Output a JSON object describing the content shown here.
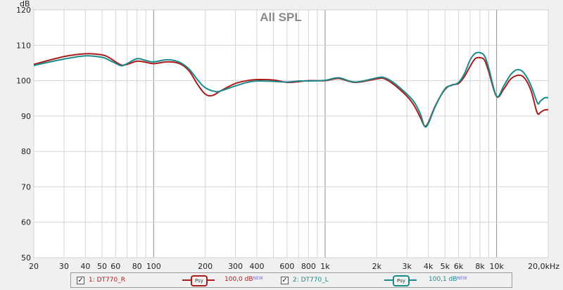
{
  "chart_data": {
    "type": "line",
    "title": "All SPL",
    "ylabel": "dB",
    "xscale": "log",
    "xlim": [
      20,
      20000
    ],
    "ylim": [
      50,
      120
    ],
    "grid": true,
    "yticks": [
      50,
      60,
      70,
      80,
      90,
      100,
      110,
      120
    ],
    "xticks": [
      {
        "v": 20,
        "l": "20"
      },
      {
        "v": 30,
        "l": "30"
      },
      {
        "v": 40,
        "l": "40"
      },
      {
        "v": 50,
        "l": "50"
      },
      {
        "v": 60,
        "l": "60"
      },
      {
        "v": 80,
        "l": "80"
      },
      {
        "v": 100,
        "l": "100"
      },
      {
        "v": 200,
        "l": "200"
      },
      {
        "v": 300,
        "l": "300"
      },
      {
        "v": 400,
        "l": "400"
      },
      {
        "v": 600,
        "l": "600"
      },
      {
        "v": 800,
        "l": "800"
      },
      {
        "v": 1000,
        "l": "1k"
      },
      {
        "v": 2000,
        "l": "2k"
      },
      {
        "v": 3000,
        "l": "3k"
      },
      {
        "v": 4000,
        "l": "4k"
      },
      {
        "v": 5000,
        "l": "5k"
      },
      {
        "v": 6000,
        "l": "6k"
      },
      {
        "v": 8000,
        "l": "8k"
      },
      {
        "v": 10000,
        "l": "10k"
      },
      {
        "v": 20000,
        "l": "20,0kHz"
      }
    ],
    "series": [
      {
        "name": "1: DT770_R",
        "color": "#aa1c1c",
        "points": [
          [
            20,
            104.6
          ],
          [
            30,
            106.8
          ],
          [
            40,
            107.6
          ],
          [
            50,
            107.3
          ],
          [
            55,
            106.5
          ],
          [
            60,
            105.3
          ],
          [
            65,
            104.4
          ],
          [
            70,
            104.6
          ],
          [
            80,
            105.5
          ],
          [
            90,
            105.2
          ],
          [
            100,
            104.8
          ],
          [
            120,
            105.3
          ],
          [
            140,
            104.9
          ],
          [
            160,
            102.9
          ],
          [
            180,
            99.0
          ],
          [
            200,
            96.2
          ],
          [
            220,
            95.8
          ],
          [
            250,
            97.3
          ],
          [
            300,
            99.2
          ],
          [
            350,
            100.0
          ],
          [
            400,
            100.3
          ],
          [
            500,
            100.2
          ],
          [
            600,
            99.5
          ],
          [
            700,
            99.7
          ],
          [
            800,
            100.0
          ],
          [
            1000,
            100.0
          ],
          [
            1200,
            100.6
          ],
          [
            1500,
            99.5
          ],
          [
            2000,
            100.5
          ],
          [
            2200,
            100.6
          ],
          [
            2500,
            99.0
          ],
          [
            3000,
            95.6
          ],
          [
            3300,
            93.0
          ],
          [
            3600,
            89.5
          ],
          [
            3800,
            87.2
          ],
          [
            4000,
            88.2
          ],
          [
            4400,
            93.0
          ],
          [
            5000,
            97.5
          ],
          [
            5500,
            98.8
          ],
          [
            6000,
            99.2
          ],
          [
            6500,
            101.2
          ],
          [
            7000,
            104.0
          ],
          [
            7500,
            106.2
          ],
          [
            8000,
            106.5
          ],
          [
            8500,
            105.8
          ],
          [
            9000,
            102.5
          ],
          [
            10000,
            95.5
          ],
          [
            11000,
            97.6
          ],
          [
            12000,
            100.3
          ],
          [
            13000,
            101.4
          ],
          [
            14000,
            101.4
          ],
          [
            15000,
            99.8
          ],
          [
            16000,
            96.7
          ],
          [
            17000,
            91.8
          ],
          [
            17500,
            90.5
          ],
          [
            18000,
            91.0
          ],
          [
            19000,
            91.7
          ],
          [
            20000,
            91.8
          ]
        ]
      },
      {
        "name": "2: DT770_L",
        "color": "#1c8a8a",
        "points": [
          [
            20,
            104.3
          ],
          [
            30,
            106.1
          ],
          [
            40,
            107.0
          ],
          [
            50,
            106.6
          ],
          [
            55,
            105.8
          ],
          [
            60,
            104.9
          ],
          [
            65,
            104.2
          ],
          [
            70,
            104.8
          ],
          [
            80,
            106.2
          ],
          [
            90,
            105.7
          ],
          [
            100,
            105.3
          ],
          [
            120,
            105.9
          ],
          [
            140,
            105.3
          ],
          [
            160,
            103.4
          ],
          [
            180,
            100.3
          ],
          [
            200,
            98.0
          ],
          [
            230,
            96.9
          ],
          [
            250,
            97.2
          ],
          [
            300,
            98.5
          ],
          [
            350,
            99.5
          ],
          [
            400,
            99.9
          ],
          [
            500,
            99.8
          ],
          [
            600,
            99.6
          ],
          [
            700,
            99.9
          ],
          [
            800,
            99.9
          ],
          [
            1000,
            100.1
          ],
          [
            1200,
            100.8
          ],
          [
            1500,
            99.6
          ],
          [
            2000,
            100.8
          ],
          [
            2200,
            100.9
          ],
          [
            2500,
            99.5
          ],
          [
            3000,
            96.2
          ],
          [
            3300,
            94.0
          ],
          [
            3600,
            90.5
          ],
          [
            3800,
            87.1
          ],
          [
            4000,
            87.9
          ],
          [
            4400,
            92.8
          ],
          [
            5000,
            97.7
          ],
          [
            5500,
            98.7
          ],
          [
            6000,
            99.5
          ],
          [
            6500,
            102.0
          ],
          [
            7000,
            105.8
          ],
          [
            7500,
            107.7
          ],
          [
            8000,
            107.9
          ],
          [
            8500,
            107.0
          ],
          [
            9000,
            103.5
          ],
          [
            10000,
            95.6
          ],
          [
            11000,
            98.5
          ],
          [
            12000,
            101.5
          ],
          [
            13000,
            103.0
          ],
          [
            14000,
            102.8
          ],
          [
            15000,
            101.0
          ],
          [
            16000,
            98.2
          ],
          [
            17000,
            94.6
          ],
          [
            17500,
            93.4
          ],
          [
            18000,
            94.2
          ],
          [
            19000,
            95.1
          ],
          [
            20000,
            95.2
          ]
        ]
      }
    ]
  },
  "legend": {
    "items": [
      {
        "label": "1: DT770_R",
        "swatch_text": "Psy",
        "value": "100,0 dB",
        "badge": "NEW",
        "color": "#aa1c1c"
      },
      {
        "label": "2: DT770_L",
        "swatch_text": "Psy",
        "value": "100,1 dB",
        "badge": "NEW",
        "color": "#1c8a8a"
      }
    ]
  }
}
